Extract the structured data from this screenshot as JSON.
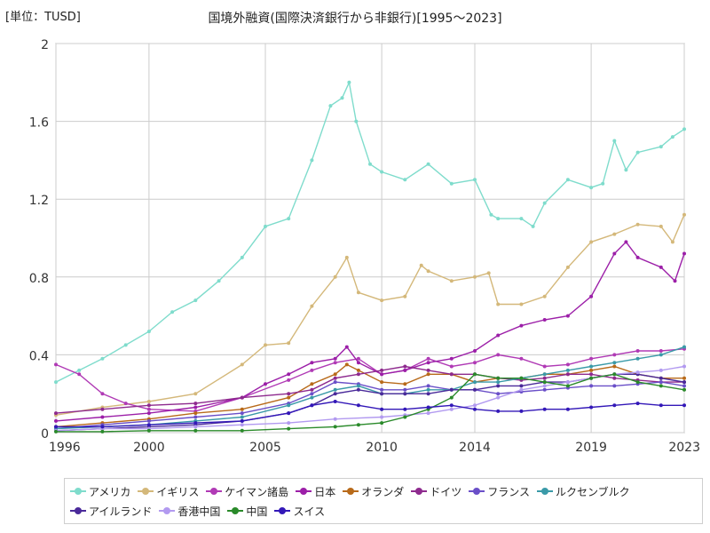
{
  "unit_label": "[単位：TUSD]",
  "chart_data": {
    "type": "line",
    "title": "国境外融資(国際決済銀行から非銀行)[1995～2023]",
    "xlabel": "",
    "ylabel": "",
    "xlim": [
      1996,
      2023
    ],
    "ylim": [
      0,
      2
    ],
    "x_ticks": [
      "1996",
      "2000",
      "2005",
      "2010",
      "2014",
      "2019",
      "2023"
    ],
    "y_ticks": [
      "0",
      "0.4",
      "0.8",
      "1.2",
      "1.6",
      "2"
    ],
    "grid": true,
    "legend_position": "bottom",
    "series": [
      {
        "name": "アメリカ",
        "color": "#7fdccc",
        "x": [
          1996,
          1997,
          1998,
          1999,
          2000,
          2001,
          2002,
          2003,
          2004,
          2005,
          2006,
          2007,
          2007.8,
          2008.3,
          2008.6,
          2008.9,
          2009.5,
          2010,
          2011,
          2012,
          2013,
          2014,
          2014.7,
          2015,
          2016,
          2016.5,
          2017,
          2018,
          2019,
          2019.5,
          2020,
          2020.5,
          2021,
          2022,
          2022.5,
          2023
        ],
        "y": [
          0.26,
          0.32,
          0.38,
          0.45,
          0.52,
          0.62,
          0.68,
          0.78,
          0.9,
          1.06,
          1.1,
          1.4,
          1.68,
          1.72,
          1.8,
          1.6,
          1.38,
          1.34,
          1.3,
          1.38,
          1.28,
          1.3,
          1.12,
          1.1,
          1.1,
          1.06,
          1.18,
          1.3,
          1.26,
          1.28,
          1.5,
          1.35,
          1.44,
          1.47,
          1.52,
          1.56
        ]
      },
      {
        "name": "イギリス",
        "color": "#d4b87a",
        "x": [
          1996,
          1998,
          2000,
          2002,
          2004,
          2005,
          2006,
          2007,
          2008,
          2008.5,
          2009,
          2010,
          2011,
          2011.7,
          2012,
          2013,
          2014,
          2014.6,
          2015,
          2016,
          2017,
          2018,
          2019,
          2020,
          2021,
          2022,
          2022.5,
          2023
        ],
        "y": [
          0.09,
          0.13,
          0.16,
          0.2,
          0.35,
          0.45,
          0.46,
          0.65,
          0.8,
          0.9,
          0.72,
          0.68,
          0.7,
          0.86,
          0.83,
          0.78,
          0.8,
          0.82,
          0.66,
          0.66,
          0.7,
          0.85,
          0.98,
          1.02,
          1.07,
          1.06,
          0.98,
          1.12
        ]
      },
      {
        "name": "ケイマン諸島",
        "color": "#b03ab5",
        "x": [
          1996,
          1997,
          1998,
          1999,
          2000,
          2002,
          2004,
          2006,
          2007,
          2008,
          2009,
          2010,
          2011,
          2012,
          2013,
          2014,
          2015,
          2016,
          2017,
          2018,
          2019,
          2020,
          2021,
          2022,
          2023
        ],
        "y": [
          0.35,
          0.3,
          0.2,
          0.15,
          0.12,
          0.11,
          0.18,
          0.27,
          0.32,
          0.36,
          0.38,
          0.3,
          0.32,
          0.38,
          0.34,
          0.36,
          0.4,
          0.38,
          0.34,
          0.35,
          0.38,
          0.4,
          0.42,
          0.42,
          0.43
        ]
      },
      {
        "name": "日本",
        "color": "#9c1fa8",
        "x": [
          1996,
          1998,
          2000,
          2002,
          2004,
          2005,
          2006,
          2007,
          2008,
          2008.5,
          2009,
          2010,
          2011,
          2012,
          2013,
          2014,
          2015,
          2016,
          2017,
          2018,
          2019,
          2020,
          2020.5,
          2021,
          2022,
          2022.6,
          2023
        ],
        "y": [
          0.06,
          0.08,
          0.1,
          0.13,
          0.18,
          0.25,
          0.3,
          0.36,
          0.38,
          0.44,
          0.36,
          0.3,
          0.32,
          0.36,
          0.38,
          0.42,
          0.5,
          0.55,
          0.58,
          0.6,
          0.7,
          0.92,
          0.98,
          0.9,
          0.85,
          0.78,
          0.92
        ]
      },
      {
        "name": "オランダ",
        "color": "#b86a1a",
        "x": [
          1996,
          1998,
          2000,
          2002,
          2004,
          2006,
          2007,
          2008,
          2008.5,
          2009,
          2010,
          2011,
          2012,
          2013,
          2014,
          2015,
          2016,
          2017,
          2018,
          2019,
          2020,
          2021,
          2022,
          2023
        ],
        "y": [
          0.03,
          0.05,
          0.07,
          0.1,
          0.12,
          0.18,
          0.25,
          0.3,
          0.35,
          0.32,
          0.26,
          0.25,
          0.3,
          0.3,
          0.26,
          0.28,
          0.28,
          0.3,
          0.3,
          0.32,
          0.34,
          0.3,
          0.28,
          0.28
        ]
      },
      {
        "name": "ドイツ",
        "color": "#8e2a8e",
        "x": [
          1996,
          1998,
          2000,
          2002,
          2004,
          2006,
          2007,
          2008,
          2009,
          2010,
          2011,
          2012,
          2013,
          2014,
          2015,
          2016,
          2017,
          2018,
          2019,
          2020,
          2021,
          2022,
          2023
        ],
        "y": [
          0.1,
          0.12,
          0.14,
          0.15,
          0.18,
          0.2,
          0.22,
          0.28,
          0.3,
          0.32,
          0.34,
          0.32,
          0.3,
          0.3,
          0.28,
          0.27,
          0.28,
          0.3,
          0.3,
          0.28,
          0.27,
          0.26,
          0.26
        ]
      },
      {
        "name": "フランス",
        "color": "#6a4fc8",
        "x": [
          1996,
          1998,
          2000,
          2002,
          2004,
          2006,
          2007,
          2008,
          2009,
          2010,
          2011,
          2012,
          2013,
          2014,
          2015,
          2016,
          2017,
          2018,
          2019,
          2020,
          2021,
          2022,
          2023
        ],
        "y": [
          0.02,
          0.04,
          0.06,
          0.08,
          0.1,
          0.15,
          0.2,
          0.26,
          0.25,
          0.22,
          0.22,
          0.24,
          0.22,
          0.22,
          0.2,
          0.21,
          0.22,
          0.23,
          0.24,
          0.24,
          0.25,
          0.26,
          0.24
        ]
      },
      {
        "name": "ルクセンブルク",
        "color": "#3a9aa8",
        "x": [
          1996,
          1998,
          2000,
          2002,
          2004,
          2006,
          2007,
          2008,
          2009,
          2010,
          2011,
          2012,
          2013,
          2014,
          2015,
          2016,
          2017,
          2018,
          2019,
          2020,
          2021,
          2022,
          2023
        ],
        "y": [
          0.02,
          0.03,
          0.04,
          0.06,
          0.08,
          0.14,
          0.18,
          0.22,
          0.24,
          0.2,
          0.2,
          0.22,
          0.22,
          0.26,
          0.26,
          0.28,
          0.3,
          0.32,
          0.34,
          0.36,
          0.38,
          0.4,
          0.44
        ]
      },
      {
        "name": "アイルランド",
        "color": "#4a2a9a",
        "x": [
          1996,
          1998,
          2000,
          2002,
          2004,
          2006,
          2007,
          2008,
          2009,
          2010,
          2011,
          2012,
          2013,
          2014,
          2015,
          2016,
          2017,
          2018,
          2019,
          2020,
          2021,
          2022,
          2023
        ],
        "y": [
          0.01,
          0.02,
          0.03,
          0.04,
          0.06,
          0.1,
          0.14,
          0.2,
          0.22,
          0.2,
          0.2,
          0.2,
          0.22,
          0.22,
          0.24,
          0.24,
          0.26,
          0.26,
          0.28,
          0.3,
          0.3,
          0.28,
          0.26
        ]
      },
      {
        "name": "香港中国",
        "color": "#b29af0",
        "x": [
          1996,
          1998,
          2000,
          2002,
          2004,
          2006,
          2008,
          2010,
          2011,
          2012,
          2013,
          2014,
          2015,
          2016,
          2017,
          2018,
          2019,
          2020,
          2021,
          2022,
          2023
        ],
        "y": [
          0.01,
          0.02,
          0.02,
          0.03,
          0.04,
          0.05,
          0.07,
          0.08,
          0.09,
          0.1,
          0.12,
          0.14,
          0.18,
          0.22,
          0.24,
          0.26,
          0.28,
          0.3,
          0.31,
          0.32,
          0.34
        ]
      },
      {
        "name": "中国",
        "color": "#2a8a2a",
        "x": [
          1996,
          1998,
          2000,
          2002,
          2004,
          2006,
          2008,
          2009,
          2010,
          2011,
          2012,
          2013,
          2014,
          2015,
          2016,
          2017,
          2018,
          2019,
          2020,
          2021,
          2022,
          2023
        ],
        "y": [
          0.005,
          0.005,
          0.01,
          0.01,
          0.01,
          0.02,
          0.03,
          0.04,
          0.05,
          0.08,
          0.12,
          0.18,
          0.3,
          0.28,
          0.28,
          0.26,
          0.24,
          0.28,
          0.3,
          0.26,
          0.24,
          0.22
        ]
      },
      {
        "name": "スイス",
        "color": "#3318b8",
        "x": [
          1996,
          1998,
          2000,
          2002,
          2004,
          2006,
          2007,
          2008,
          2009,
          2010,
          2011,
          2012,
          2013,
          2014,
          2015,
          2016,
          2017,
          2018,
          2019,
          2020,
          2021,
          2022,
          2023
        ],
        "y": [
          0.03,
          0.03,
          0.04,
          0.05,
          0.06,
          0.1,
          0.14,
          0.16,
          0.14,
          0.12,
          0.12,
          0.13,
          0.14,
          0.12,
          0.11,
          0.11,
          0.12,
          0.12,
          0.13,
          0.14,
          0.15,
          0.14,
          0.14
        ]
      }
    ]
  }
}
